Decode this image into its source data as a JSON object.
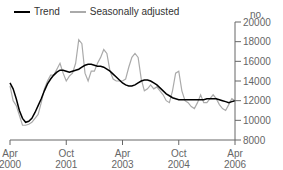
{
  "chart_data": {
    "type": "line",
    "ylabel": "no.",
    "ylim": [
      8000,
      20000
    ],
    "yticks": [
      8000,
      10000,
      12000,
      14000,
      16000,
      18000,
      20000
    ],
    "grid": false,
    "legend": "upper left",
    "categories": [
      "Apr\n2000",
      null,
      null,
      null,
      null,
      null,
      null,
      null,
      null,
      null,
      null,
      null,
      null,
      null,
      null,
      null,
      null,
      null,
      "Oct\n2001",
      null,
      null,
      null,
      null,
      null,
      null,
      null,
      null,
      null,
      null,
      null,
      null,
      null,
      null,
      null,
      null,
      null,
      "Apr\n2003",
      null,
      null,
      null,
      null,
      null,
      null,
      null,
      null,
      null,
      null,
      null,
      null,
      null,
      null,
      null,
      null,
      null,
      "Oct\n2004",
      null,
      null,
      null,
      null,
      null,
      null,
      null,
      null,
      null,
      null,
      null,
      null,
      null,
      null,
      null,
      null,
      null,
      "Apr\n2006"
    ],
    "series": [
      {
        "name": "Trend",
        "color": "#000000",
        "values": [
          13800,
          13200,
          12200,
          11000,
          10200,
          9800,
          9900,
          10200,
          10800,
          11500,
          12200,
          13000,
          13700,
          14200,
          14600,
          14900,
          15100,
          15100,
          15000,
          14900,
          15000,
          15100,
          15200,
          15400,
          15600,
          15700,
          15700,
          15600,
          15500,
          15500,
          15400,
          15200,
          15000,
          14700,
          14400,
          14100,
          13800,
          13600,
          13500,
          13500,
          13600,
          13800,
          14000,
          14100,
          14100,
          14000,
          13800,
          13600,
          13300,
          13000,
          12700,
          12500,
          12300,
          12200,
          12100,
          12100,
          12100,
          12100,
          12100,
          12100,
          12100,
          12100,
          12100,
          12200,
          12200,
          12200,
          12200,
          12100,
          12000,
          11900,
          11800,
          11900,
          12000
        ]
      },
      {
        "name": "Seasonally adjusted",
        "color": "#aaaaaa",
        "values": [
          13500,
          12000,
          11500,
          10500,
          9500,
          9500,
          9600,
          9800,
          10200,
          10600,
          11800,
          13200,
          14000,
          14600,
          14600,
          15200,
          15800,
          14800,
          14000,
          14500,
          14800,
          15800,
          18200,
          17800,
          14800,
          14000,
          15000,
          15000,
          15800,
          16400,
          17200,
          16800,
          15000,
          14200,
          14000,
          14000,
          14000,
          14200,
          15400,
          16400,
          16800,
          16400,
          14200,
          13000,
          13200,
          13600,
          13200,
          13400,
          13000,
          12600,
          12000,
          11800,
          13000,
          14800,
          15000,
          13000,
          12000,
          11800,
          11400,
          11200,
          11800,
          12600,
          11800,
          11800,
          12200,
          12600,
          12200,
          11600,
          11200,
          11000,
          11600,
          12200,
          12000
        ]
      }
    ]
  }
}
